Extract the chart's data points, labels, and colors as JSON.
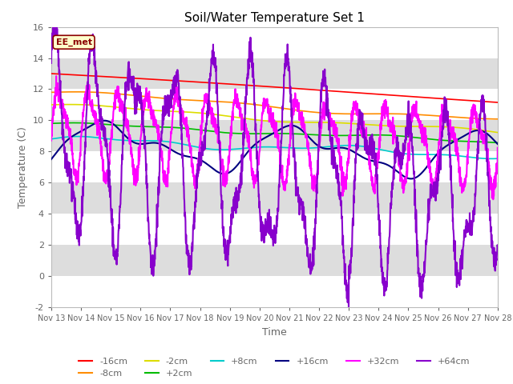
{
  "title": "Soil/Water Temperature Set 1",
  "xlabel": "Time",
  "ylabel": "Temperature (C)",
  "ylim": [
    -2,
    16
  ],
  "xlim": [
    0,
    15
  ],
  "xtick_labels": [
    "Nov 13",
    "Nov 14",
    "Nov 15",
    "Nov 16",
    "Nov 17",
    "Nov 18",
    "Nov 19",
    "Nov 20",
    "Nov 21",
    "Nov 22",
    "Nov 23",
    "Nov 24",
    "Nov 25",
    "Nov 26",
    "Nov 27",
    "Nov 28"
  ],
  "series": {
    "-16cm": {
      "color": "#FF0000",
      "lw": 1.2
    },
    "-8cm": {
      "color": "#FF8C00",
      "lw": 1.2
    },
    "-2cm": {
      "color": "#DDDD00",
      "lw": 1.2
    },
    "+2cm": {
      "color": "#00BB00",
      "lw": 1.2
    },
    "+8cm": {
      "color": "#00CCCC",
      "lw": 1.2
    },
    "+16cm": {
      "color": "#000080",
      "lw": 1.5
    },
    "+32cm": {
      "color": "#FF00FF",
      "lw": 1.5
    },
    "+64cm": {
      "color": "#8800CC",
      "lw": 1.5
    }
  },
  "annotation_text": "EE_met",
  "annotation_color": "#8B0000",
  "annotation_bg": "#FFFFCC",
  "fig_bg": "#FFFFFF",
  "band_light": "#FFFFFF",
  "band_dark": "#DDDDDD",
  "font_color": "#666666"
}
